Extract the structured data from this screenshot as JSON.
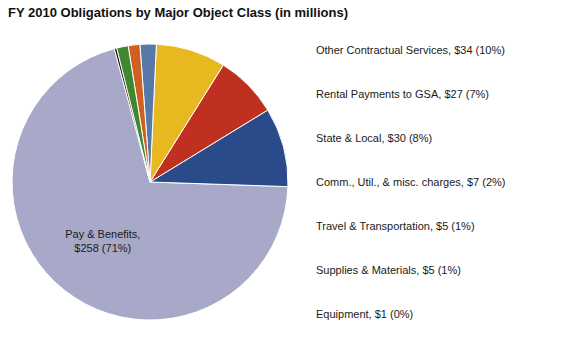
{
  "chart_data": {
    "type": "pie",
    "title": "FY 2010 Obligations by Major Object Class (in millions)",
    "categories": [
      "Pay & Benefits,\n$258 (71%)",
      "Other Contractual Services, $34 (10%)",
      "Rental Payments to GSA, $27 (7%)",
      "State & Local, $30 (8%)",
      "Comm., Util., & misc. charges, $7 (2%)",
      "Travel & Transportation, $5 (1%)",
      "Supplies & Materials, $5 (1%)",
      "Equipment, $1 (0%)"
    ],
    "values": [
      258,
      34,
      27,
      30,
      7,
      5,
      5,
      1
    ],
    "colors": [
      "#a8a8c8",
      "#2a4a8a",
      "#c03020",
      "#e8b820",
      "#5878a8",
      "#d06020",
      "#408830",
      "#101010"
    ]
  }
}
